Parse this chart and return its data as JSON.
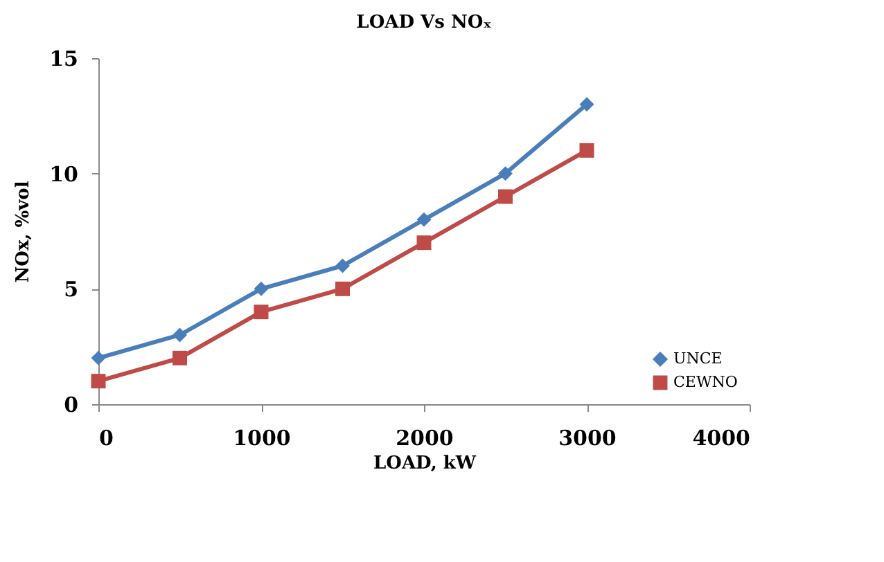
{
  "chart_data": {
    "type": "line",
    "title": "LOAD Vs NOₓ",
    "xlabel": "LOAD, kW",
    "ylabel": "NOx, %vol",
    "x": [
      0,
      500,
      1000,
      1500,
      2000,
      2500,
      3000
    ],
    "series": [
      {
        "name": "UNCE",
        "color": "#4a7ebb",
        "marker": "diamond",
        "values": [
          2,
          3,
          5,
          6,
          8,
          10,
          13
        ]
      },
      {
        "name": "CEWNO",
        "color": "#be4b48",
        "marker": "square",
        "values": [
          1,
          2,
          4,
          5,
          7,
          9,
          11
        ]
      }
    ],
    "xlim": [
      0,
      4000
    ],
    "xticks": [
      0,
      1000,
      2000,
      3000,
      4000
    ],
    "ylim": [
      0,
      15
    ],
    "yticks": [
      0,
      5,
      10,
      15
    ],
    "grid": false,
    "legend": "bottom right",
    "line_style": "solid"
  }
}
